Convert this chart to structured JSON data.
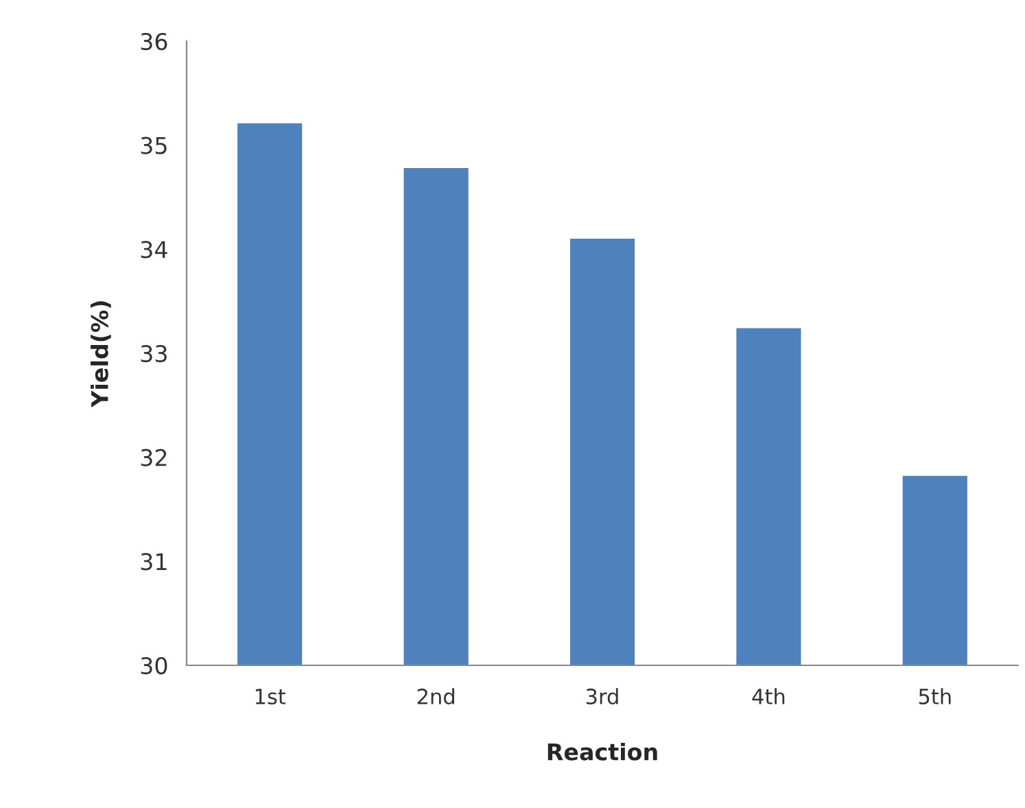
{
  "chart_data": {
    "type": "bar",
    "xlabel": "Reaction",
    "ylabel": "Yield(%)",
    "categories": [
      "1st",
      "2nd",
      "3rd",
      "4th",
      "5th"
    ],
    "values": [
      35.22,
      34.79,
      34.11,
      33.25,
      31.83
    ],
    "color": "#4f81bd",
    "ylim": [
      30,
      36
    ],
    "yticks": [
      30,
      31,
      32,
      33,
      34,
      35,
      36
    ],
    "grid": false
  }
}
